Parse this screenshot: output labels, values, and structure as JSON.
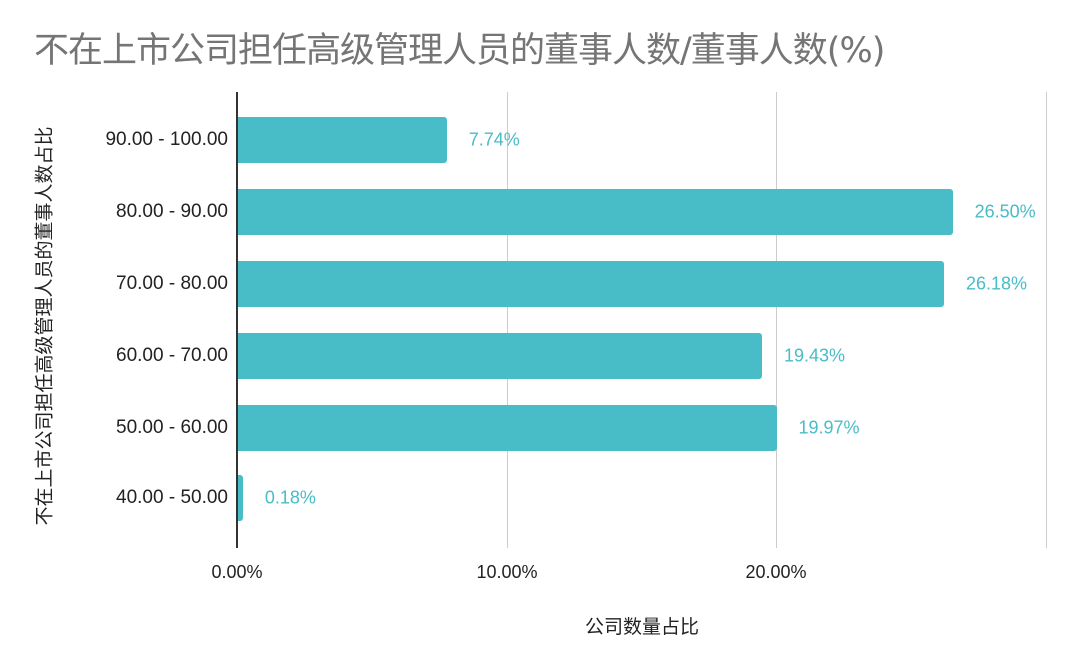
{
  "chart_data": {
    "type": "bar",
    "orientation": "horizontal",
    "title": "不在上市公司担任高级管理人员的董事人数/董事人数(%)",
    "xlabel": "公司数量占比",
    "ylabel": "不在上市公司担任高级管理人员的董事人数占比",
    "categories": [
      "90.00 - 100.00",
      "80.00 - 90.00",
      "70.00 - 80.00",
      "60.00 - 70.00",
      "50.00 - 60.00",
      "40.00 - 50.00"
    ],
    "values": [
      7.74,
      26.5,
      26.18,
      19.43,
      19.97,
      0.18
    ],
    "value_labels": [
      "7.74%",
      "26.50%",
      "26.18%",
      "19.43%",
      "19.97%",
      "0.18%"
    ],
    "x_ticks": [
      "0.00%",
      "10.00%",
      "20.00%"
    ],
    "xlim": [
      0,
      30
    ],
    "grid": true,
    "bar_color": "#48bcc7",
    "legend": null
  }
}
